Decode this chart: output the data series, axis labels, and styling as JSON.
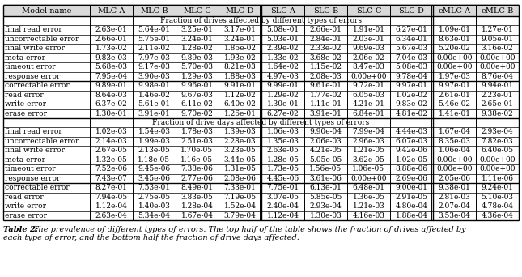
{
  "caption_bold": "Table 2: ",
  "caption_rest": "The prevalence of different types of errors. The top half of the table shows the fraction of drives affected by\neach type of error, and the bottom half the fraction of drive days affected.",
  "col_headers": [
    "Model name",
    "MLC-A",
    "MLC-B",
    "MLC-C",
    "MLC-D",
    "SLC-A",
    "SLC-B",
    "SLC-C",
    "SLC-D",
    "eMLC-A",
    "eMLC-B"
  ],
  "section1_title": "Fraction of drives affected by different types of errors",
  "section2_title": "Fraction of drive days affected by different types of errors",
  "block1_rows": [
    [
      "final read error",
      "2.63e-01",
      "5.64e-01",
      "3.25e-01",
      "3.17e-01",
      "5.08e-01",
      "2.66e-01",
      "1.91e-01",
      "6.27e-01",
      "1.09e-01",
      "1.27e-01"
    ],
    [
      "uncorrectable error",
      "2.66e-01",
      "5.75e-01",
      "3.24e-01",
      "3.24e-01",
      "5.03e-01",
      "2.84e-01",
      "2.03e-01",
      "6.34e-01",
      "8.63e-01",
      "9.05e-01"
    ],
    [
      "final write error",
      "1.73e-02",
      "2.11e-02",
      "1.28e-02",
      "1.85e-02",
      "2.39e-02",
      "2.33e-02",
      "9.69e-03",
      "5.67e-03",
      "5.20e-02",
      "3.16e-02"
    ],
    [
      "meta error",
      "9.83e-03",
      "7.97e-03",
      "9.89e-03",
      "1.93e-02",
      "1.33e-02",
      "3.68e-02",
      "2.06e-02",
      "7.04e-03",
      "0.00e+00",
      "0.00e+00"
    ],
    [
      "timeout error",
      "5.68e-03",
      "9.17e-03",
      "5.70e-03",
      "8.21e-03",
      "1.64e-02",
      "1.15e-02",
      "8.47e-03",
      "5.08e-03",
      "0.00e+00",
      "0.00e+00"
    ],
    [
      "response error",
      "7.95e-04",
      "3.90e-03",
      "1.29e-03",
      "1.88e-03",
      "4.97e-03",
      "2.08e-03",
      "0.00e+00",
      "9.78e-04",
      "1.97e-03",
      "8.76e-04"
    ]
  ],
  "block2_rows": [
    [
      "correctable error",
      "9.89e-01",
      "9.98e-01",
      "9.96e-01",
      "9.91e-01",
      "9.99e-01",
      "9.61e-01",
      "9.72e-01",
      "9.97e-01",
      "9.97e-01",
      "9.94e-01"
    ],
    [
      "read error",
      "8.64e-03",
      "1.46e-02",
      "9.67e-03",
      "1.12e-02",
      "1.29e-02",
      "1.77e-02",
      "6.05e-03",
      "1.02e-02",
      "2.61e-01",
      "2.23e-01"
    ],
    [
      "write error",
      "6.37e-02",
      "5.61e-01",
      "6.11e-02",
      "6.40e-02",
      "1.30e-01",
      "1.11e-01",
      "4.21e-01",
      "9.83e-02",
      "5.46e-02",
      "2.65e-01"
    ],
    [
      "erase error",
      "1.30e-01",
      "3.91e-01",
      "9.70e-02",
      "1.26e-01",
      "6.27e-02",
      "3.91e-01",
      "6.84e-01",
      "4.81e-02",
      "1.41e-01",
      "9.38e-02"
    ]
  ],
  "block3_rows": [
    [
      "final read error",
      "1.02e-03",
      "1.54e-03",
      "1.78e-03",
      "1.39e-03",
      "1.06e-03",
      "9.90e-04",
      "7.99e-04",
      "4.44e-03",
      "1.67e-04",
      "2.93e-04"
    ],
    [
      "uncorrectable error",
      "2.14e-03",
      "1.99e-03",
      "2.51e-03",
      "2.28e-03",
      "1.35e-03",
      "2.06e-03",
      "2.96e-03",
      "6.07e-03",
      "8.35e-03",
      "7.82e-03"
    ],
    [
      "final write error",
      "2.67e-05",
      "2.13e-05",
      "1.70e-05",
      "3.23e-05",
      "2.63e-05",
      "4.21e-05",
      "1.21e-05",
      "9.42e-06",
      "1.06e-04",
      "6.40e-05"
    ],
    [
      "meta error",
      "1.32e-05",
      "1.18e-05",
      "1.16e-05",
      "3.44e-05",
      "1.28e-05",
      "5.05e-05",
      "3.62e-05",
      "1.02e-05",
      "0.00e+00",
      "0.00e+00"
    ],
    [
      "timeout error",
      "7.52e-06",
      "9.45e-06",
      "7.38e-06",
      "1.31e-05",
      "1.73e-05",
      "1.56e-05",
      "1.06e-05",
      "8.88e-06",
      "0.00e+00",
      "0.00e+00"
    ],
    [
      "response error",
      "7.43e-07",
      "3.45e-06",
      "2.77e-06",
      "2.08e-06",
      "4.45e-06",
      "3.61e-06",
      "0.00e+00",
      "2.69e-06",
      "2.05e-06",
      "1.11e-06"
    ]
  ],
  "block4_rows": [
    [
      "correctable error",
      "8.27e-01",
      "7.53e-01",
      "8.49e-01",
      "7.33e-01",
      "7.75e-01",
      "6.13e-01",
      "6.48e-01",
      "9.00e-01",
      "9.38e-01",
      "9.24e-01"
    ],
    [
      "read error",
      "7.94e-05",
      "2.75e-05",
      "3.83e-05",
      "7.19e-05",
      "3.07e-05",
      "5.85e-05",
      "1.36e-05",
      "2.91e-05",
      "2.81e-03",
      "5.10e-03"
    ],
    [
      "write error",
      "1.12e-04",
      "1.40e-03",
      "1.28e-04",
      "1.52e-04",
      "2.40e-04",
      "2.93e-04",
      "1.21e-03",
      "4.80e-04",
      "2.07e-04",
      "4.78e-04"
    ],
    [
      "erase error",
      "2.63e-04",
      "5.34e-04",
      "1.67e-04",
      "3.79e-04",
      "1.12e-04",
      "1.30e-03",
      "4.16e-03",
      "1.88e-04",
      "3.53e-04",
      "4.36e-04"
    ]
  ],
  "bg_color": "#ffffff",
  "header_bg": "#d9d9d9",
  "line_color": "#000000",
  "font_size": 6.5,
  "header_font_size": 7.0
}
